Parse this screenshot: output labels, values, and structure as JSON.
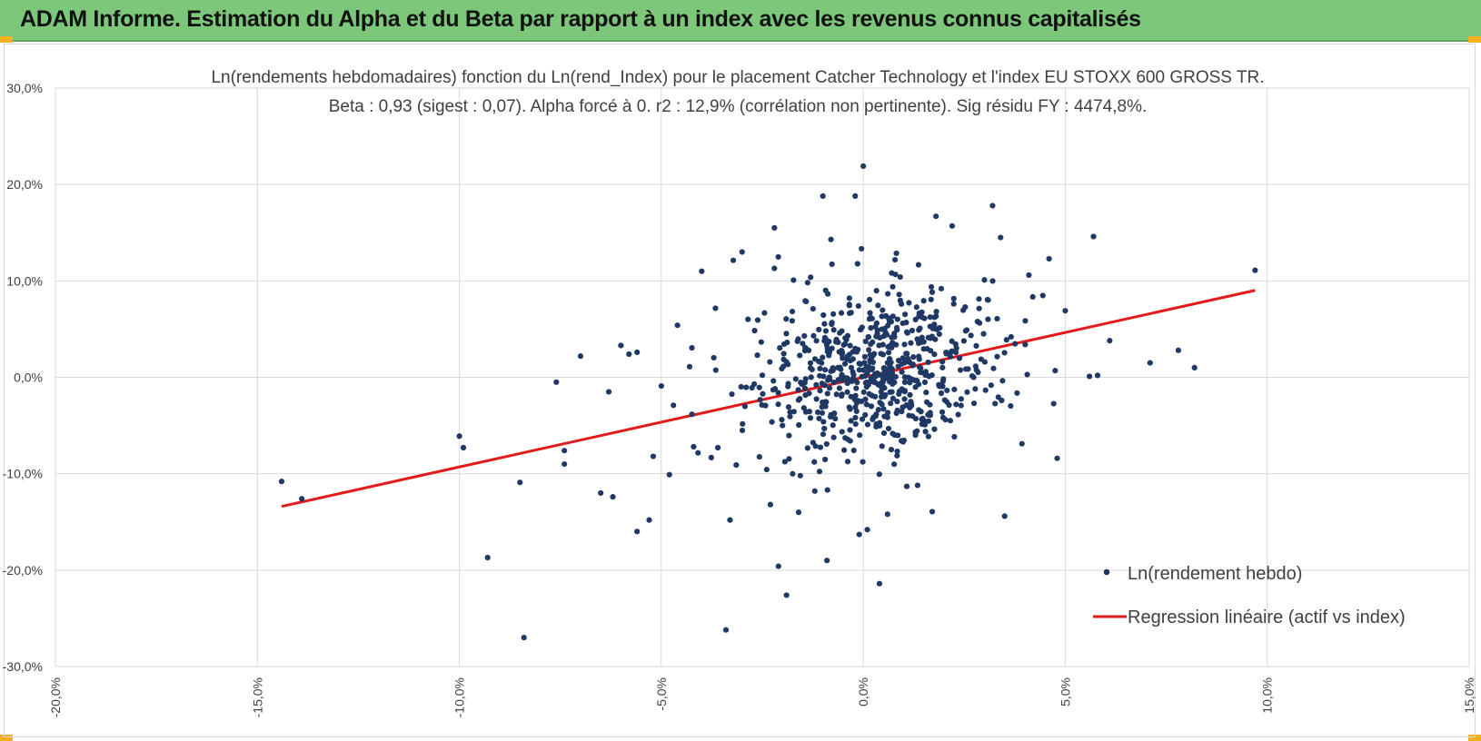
{
  "header": {
    "title": "ADAM Informe. Estimation du Alpha et du Beta par rapport à un index avec les revenus connus capitalisés"
  },
  "colors": {
    "header_bg": "#7cc77a",
    "corner_accent": "#f2b01e",
    "points": "#1f3864",
    "regression": "#e31a1c",
    "grid": "#d9d9d9"
  },
  "chart_data": {
    "type": "scatter",
    "title": "Ln(rendements hebdomadaires) fonction du Ln(rend_Index) pour le placement Catcher Technology  et l'index EU STOXX 600 GROSS TR.",
    "subtitle": "Beta : 0,93 (sigest : 0,07). Alpha forcé à 0. r2 : 12,9% (corrélation non pertinente). Sig résidu FY : 4474,8%.",
    "xlabel": "",
    "ylabel": "",
    "xlim": [
      -20,
      15
    ],
    "ylim": [
      -30,
      30
    ],
    "x_ticks": [
      -20,
      -15,
      -10,
      -5,
      0,
      5,
      10,
      15
    ],
    "y_ticks": [
      -30,
      -20,
      -10,
      0,
      10,
      20,
      30
    ],
    "x_tick_labels": [
      "-20,0%",
      "-15,0%",
      "-10,0%",
      "-5,0%",
      "0,0%",
      "5,0%",
      "10,0%",
      "15,0%"
    ],
    "y_tick_labels": [
      "-30,0%",
      "-20,0%",
      "-10,0%",
      "0,0%",
      "10,0%",
      "20,0%",
      "30,0%"
    ],
    "grid": true,
    "legend_position": "bottom-right",
    "series": [
      {
        "name": "Ln(rendement hebdo)",
        "kind": "scatter",
        "color": "#1f3864",
        "points": [
          [
            -14.4,
            -10.8
          ],
          [
            -13.9,
            -12.6
          ],
          [
            -10.0,
            -6.1
          ],
          [
            -9.9,
            -7.3
          ],
          [
            -9.3,
            -18.7
          ],
          [
            -8.5,
            -10.9
          ],
          [
            -8.4,
            -27.0
          ],
          [
            -7.6,
            -0.5
          ],
          [
            -7.4,
            -7.6
          ],
          [
            -7.4,
            -9.0
          ],
          [
            -7.0,
            2.2
          ],
          [
            -6.5,
            -12.0
          ],
          [
            -6.3,
            -1.5
          ],
          [
            -6.2,
            -12.4
          ],
          [
            -6.0,
            3.3
          ],
          [
            -5.8,
            2.4
          ],
          [
            -5.6,
            2.6
          ],
          [
            -5.6,
            -16.0
          ],
          [
            -5.3,
            -14.8
          ],
          [
            -5.2,
            -8.2
          ],
          [
            -5.0,
            -0.9
          ],
          [
            -4.8,
            -10.1
          ],
          [
            -4.7,
            -2.9
          ],
          [
            -4.6,
            5.4
          ],
          [
            -4.3,
            1.1
          ],
          [
            -4.2,
            -7.2
          ],
          [
            -4.0,
            11.0
          ],
          [
            -3.6,
            -7.3
          ],
          [
            -3.3,
            -14.8
          ],
          [
            -3.0,
            13.0
          ],
          [
            -2.7,
            -0.7
          ],
          [
            -2.3,
            -13.2
          ],
          [
            -2.2,
            15.5
          ],
          [
            -2.1,
            -19.6
          ],
          [
            -2.2,
            11.3
          ],
          [
            -2.0,
            -5.0
          ],
          [
            -1.9,
            -22.6
          ],
          [
            -1.6,
            -14.0
          ],
          [
            -1.5,
            3.5
          ],
          [
            -1.2,
            -11.8
          ],
          [
            -1.0,
            18.8
          ],
          [
            -0.9,
            -19.0
          ],
          [
            -0.8,
            14.3
          ],
          [
            -0.2,
            18.8
          ],
          [
            0.0,
            21.9
          ],
          [
            0.1,
            -15.8
          ],
          [
            -0.1,
            -16.3
          ],
          [
            0.4,
            -21.4
          ],
          [
            0.6,
            -14.2
          ],
          [
            1.8,
            16.7
          ],
          [
            2.2,
            15.7
          ],
          [
            3.2,
            17.8
          ],
          [
            3.4,
            14.5
          ],
          [
            3.5,
            -14.4
          ],
          [
            4.6,
            12.3
          ],
          [
            4.8,
            -8.4
          ],
          [
            5.0,
            6.9
          ],
          [
            5.6,
            0.1
          ],
          [
            5.7,
            14.6
          ],
          [
            5.8,
            0.2
          ],
          [
            6.1,
            3.8
          ],
          [
            7.1,
            1.5
          ],
          [
            7.8,
            2.8
          ],
          [
            8.2,
            1.0
          ],
          [
            9.7,
            11.1
          ],
          [
            -3.4,
            -26.2
          ],
          [
            3.0,
            10.1
          ],
          [
            4.1,
            10.6
          ]
        ]
      },
      {
        "name": "Regression linéaire (actif vs index)",
        "kind": "line",
        "color": "#e31a1c",
        "beta": 0.93,
        "alpha": 0,
        "x_range": [
          -14.4,
          9.7
        ]
      }
    ],
    "cluster_points_summary": {
      "count": 650,
      "x_center": 0.3,
      "y_center": 0.5,
      "x_sd": 1.5,
      "y_sd": 4.2,
      "seed": 20240517
    }
  }
}
